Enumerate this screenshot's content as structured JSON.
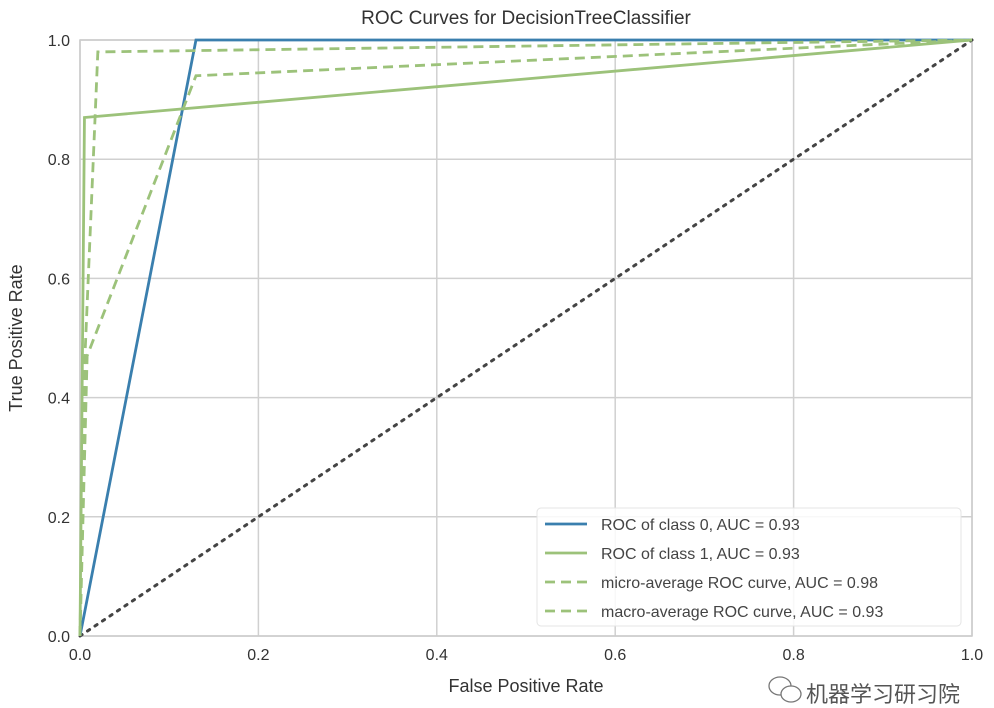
{
  "chart_data": {
    "type": "line",
    "title": "ROC Curves for DecisionTreeClassifier",
    "xlabel": "False Positive Rate",
    "ylabel": "True Positive Rate",
    "xlim": [
      0,
      1
    ],
    "ylim": [
      0,
      1
    ],
    "xticks": [
      "0.0",
      "0.2",
      "0.4",
      "0.6",
      "0.8",
      "1.0"
    ],
    "yticks": [
      "0.0",
      "0.2",
      "0.4",
      "0.6",
      "0.8",
      "1.0"
    ],
    "grid": true,
    "legend_position": "lower-right",
    "series": [
      {
        "name": "ROC of class 0, AUC = 0.93",
        "color": "#3a7fae",
        "style": "solid",
        "x": [
          0,
          0.13,
          1
        ],
        "y": [
          0,
          1,
          1
        ]
      },
      {
        "name": "ROC of class 1, AUC = 0.93",
        "color": "#9cc27a",
        "style": "solid",
        "x": [
          0,
          0.005,
          1
        ],
        "y": [
          0,
          0.87,
          1
        ]
      },
      {
        "name": "micro-average ROC curve, AUC = 0.98",
        "color": "#9cc27a",
        "style": "dashed",
        "x": [
          0,
          0.005,
          0.02,
          1
        ],
        "y": [
          0,
          0.45,
          0.98,
          1
        ]
      },
      {
        "name": "macro-average ROC curve, AUC = 0.93",
        "color": "#9cc27a",
        "style": "dashed",
        "x": [
          0,
          0.008,
          0.13,
          1
        ],
        "y": [
          0,
          0.47,
          0.94,
          1
        ]
      }
    ],
    "diagonal": {
      "x": [
        0,
        1
      ],
      "y": [
        0,
        1
      ],
      "color": "#444444",
      "style": "dotted"
    }
  },
  "watermark": {
    "text": "机器学习研习院"
  }
}
